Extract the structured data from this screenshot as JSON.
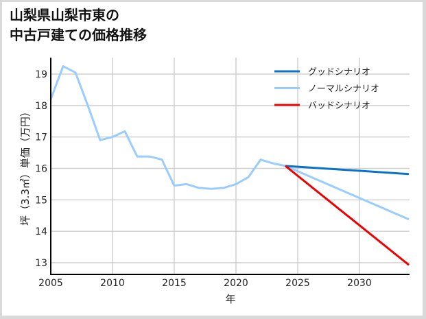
{
  "title_line1": "山梨県山梨市東の",
  "title_line2": "中古戸建ての価格推移",
  "chart_data": {
    "type": "line",
    "title": "山梨県山梨市東の中古戸建ての価格推移",
    "xlabel": "年",
    "ylabel": "坪（3.3㎡）単価（万円）",
    "xlim": [
      2005,
      2034
    ],
    "ylim": [
      12.6,
      19.6
    ],
    "xticks": [
      2005,
      2010,
      2015,
      2020,
      2025,
      2030
    ],
    "yticks": [
      13,
      14,
      15,
      16,
      17,
      18,
      19
    ],
    "grid": true,
    "legend_position": "upper right",
    "series": [
      {
        "name": "グッドシナリオ",
        "color": "#0b72c9",
        "x": [
          2024,
          2034
        ],
        "values": [
          16.08,
          15.82
        ]
      },
      {
        "name": "ノーマルシナリオ",
        "color": "#99ccff",
        "x": [
          2005,
          2006,
          2007,
          2008,
          2009,
          2010,
          2011,
          2012,
          2013,
          2014,
          2015,
          2016,
          2017,
          2018,
          2019,
          2020,
          2021,
          2022,
          2023,
          2024,
          2034
        ],
        "values": [
          18.2,
          19.25,
          19.05,
          18.0,
          16.9,
          17.0,
          17.18,
          16.38,
          16.38,
          16.28,
          15.45,
          15.5,
          15.38,
          15.35,
          15.38,
          15.5,
          15.72,
          16.28,
          16.16,
          16.08,
          14.38
        ]
      },
      {
        "name": "バッドシナリオ",
        "color": "#ee0000",
        "x": [
          2024,
          2034
        ],
        "values": [
          16.08,
          12.93
        ]
      }
    ]
  },
  "tick_labels": {
    "x": [
      "2005",
      "2010",
      "2015",
      "2020",
      "2025",
      "2030"
    ],
    "y": [
      "13",
      "14",
      "15",
      "16",
      "17",
      "18",
      "19"
    ]
  },
  "legend": [
    "グッドシナリオ",
    "ノーマルシナリオ",
    "バッドシナリオ"
  ]
}
